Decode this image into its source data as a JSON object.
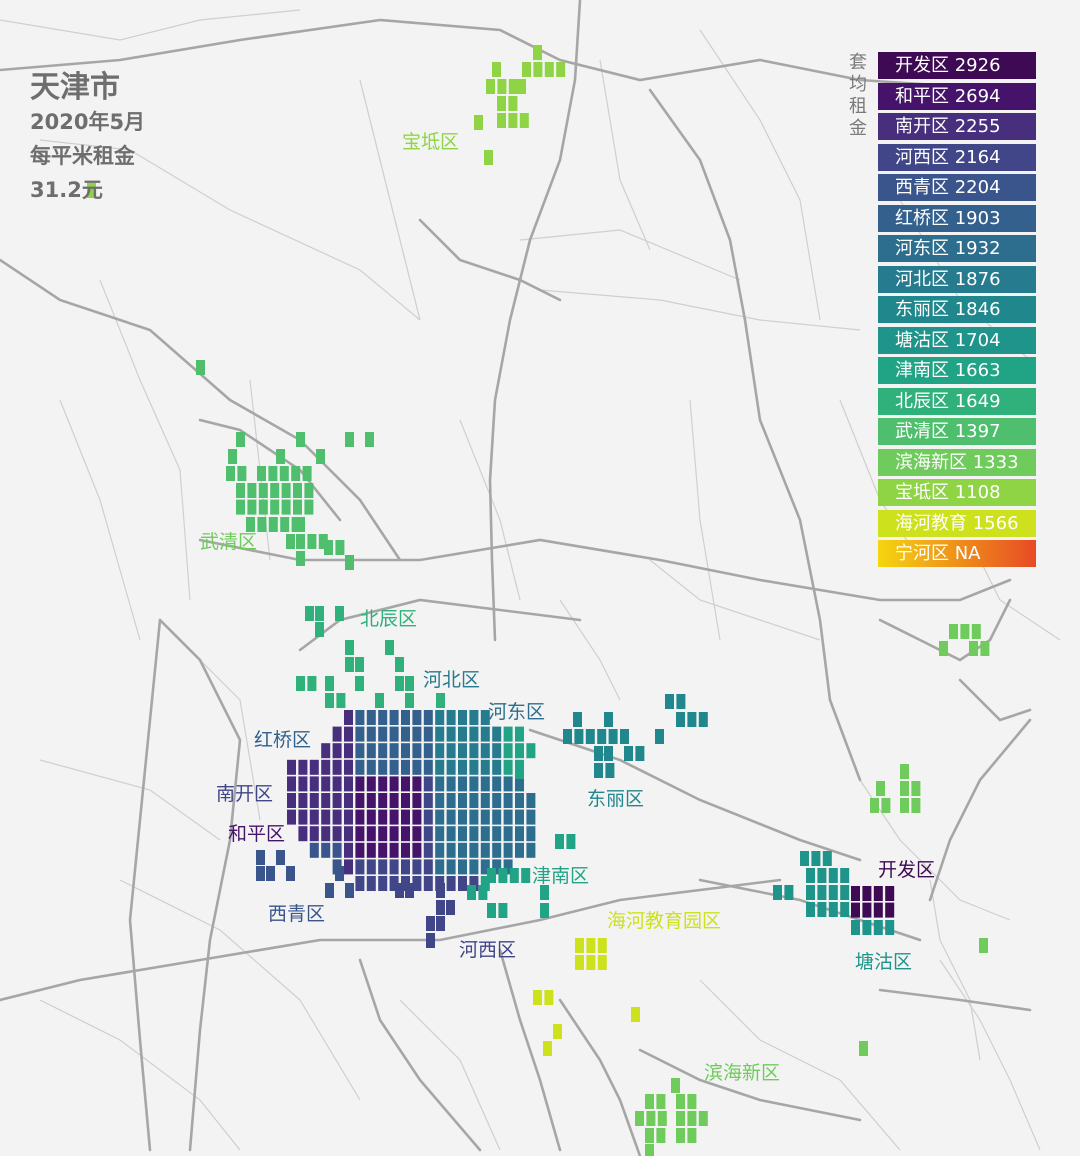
{
  "title": {
    "main": "天津市",
    "line1": "2020年5月",
    "line2": "每平米租金",
    "line3": "31.2元"
  },
  "legend": {
    "title": "套均租金",
    "items": [
      {
        "label": "开发区 2926",
        "color": "#3d0a53"
      },
      {
        "label": "和平区 2694",
        "color": "#45146a"
      },
      {
        "label": "南开区 2255",
        "color": "#472f7d"
      },
      {
        "label": "河西区 2164",
        "color": "#404688"
      },
      {
        "label": "西青区 2204",
        "color": "#3a548c"
      },
      {
        "label": "红桥区 1903",
        "color": "#33608d"
      },
      {
        "label": "河东区 1932",
        "color": "#2d6e8e"
      },
      {
        "label": "河北区 1876",
        "color": "#267b8e"
      },
      {
        "label": "东丽区 1846",
        "color": "#20878d"
      },
      {
        "label": "塘沽区 1704",
        "color": "#1f948b"
      },
      {
        "label": "津南区 1663",
        "color": "#21a385"
      },
      {
        "label": "北辰区 1649",
        "color": "#30b07b"
      },
      {
        "label": "武清区 1397",
        "color": "#4fbf6d"
      },
      {
        "label": "滨海新区 1333",
        "color": "#6fcb5c"
      },
      {
        "label": "宝坻区 1108",
        "color": "#8fd444"
      },
      {
        "label": "海河教育 1566",
        "color": "#cde11d"
      },
      {
        "label": "宁河区 NA",
        "color": "#f5d60f",
        "gradient_to": "#e84a25"
      }
    ]
  },
  "district_labels": [
    {
      "name": "宝坻区",
      "color": "#8fd444"
    },
    {
      "name": "武清区",
      "color": "#6fcb5c"
    },
    {
      "name": "北辰区",
      "color": "#30b07b"
    },
    {
      "name": "河北区",
      "color": "#267b8e"
    },
    {
      "name": "河东区",
      "color": "#2d6e8e"
    },
    {
      "name": "红桥区",
      "color": "#33608d"
    },
    {
      "name": "南开区",
      "color": "#404688"
    },
    {
      "name": "东丽区",
      "color": "#20878d"
    },
    {
      "name": "和平区",
      "color": "#45146a"
    },
    {
      "name": "开发区",
      "color": "#3d0a53"
    },
    {
      "name": "津南区",
      "color": "#21a385"
    },
    {
      "name": "西青区",
      "color": "#3a548c"
    },
    {
      "name": "海河教育园区",
      "color": "#cde11d"
    },
    {
      "name": "河西区",
      "color": "#404688"
    },
    {
      "name": "塘沽区",
      "color": "#1f948b"
    },
    {
      "name": "滨海新区",
      "color": "#6fcb5c"
    }
  ]
}
